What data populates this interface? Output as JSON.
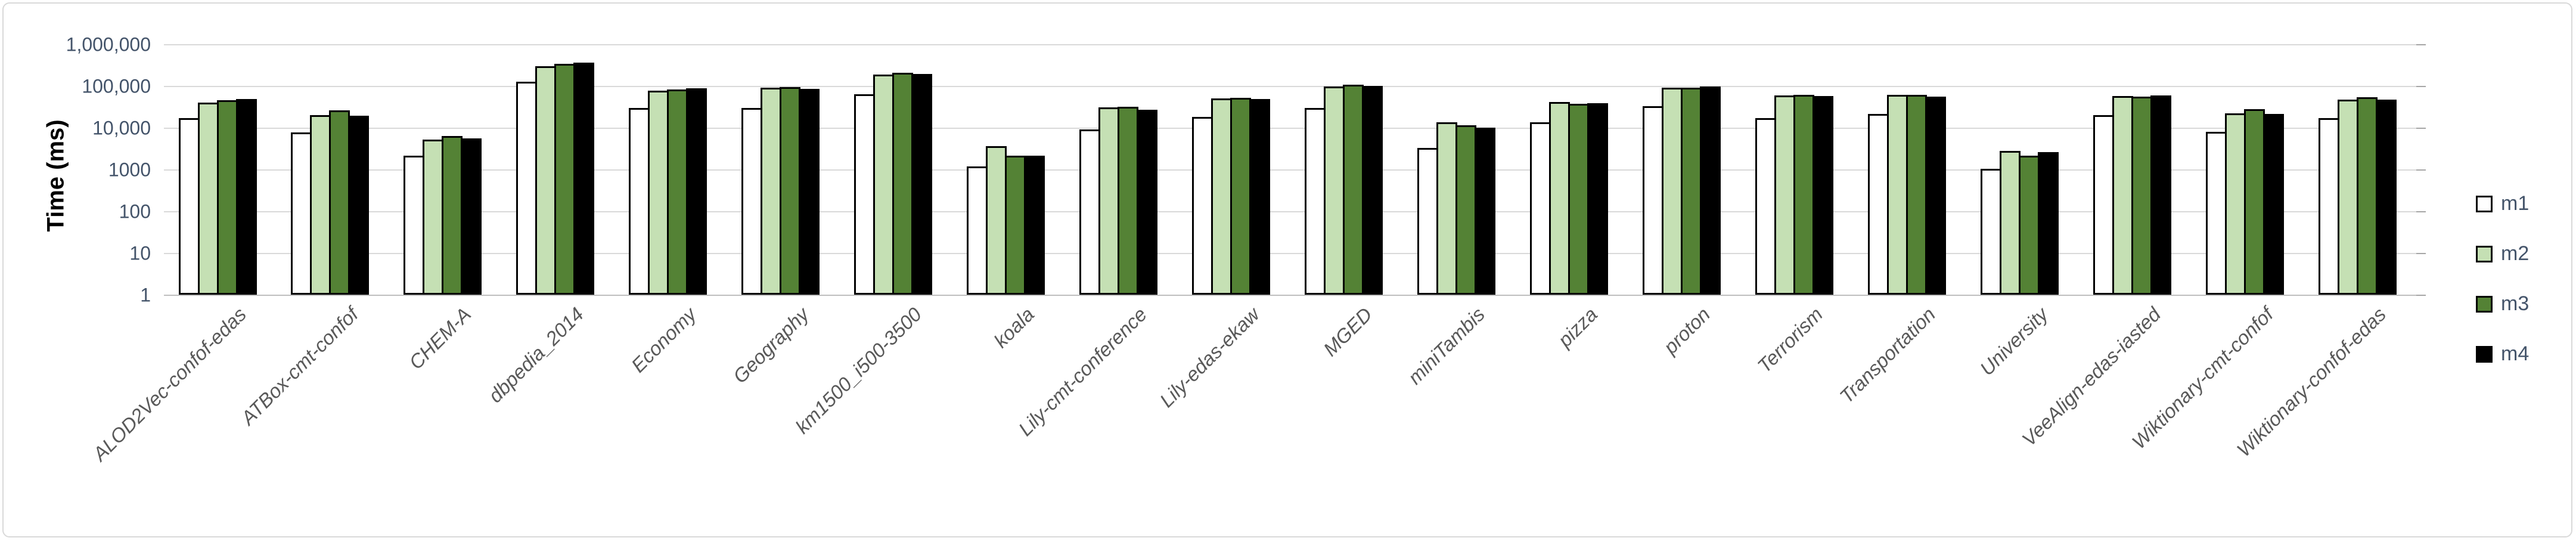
{
  "chart_data": {
    "type": "bar",
    "scale_y": "log10",
    "title": "",
    "ylabel": "Time (ms)",
    "xlabel": "",
    "ylim": [
      1,
      1000000
    ],
    "grid": true,
    "legend_position": "right",
    "y_ticks": [
      {
        "label": "1,000,000",
        "value": 1000000
      },
      {
        "label": "100,000",
        "value": 100000
      },
      {
        "label": "10,000",
        "value": 10000
      },
      {
        "label": "1000",
        "value": 1000
      },
      {
        "label": "100",
        "value": 100
      },
      {
        "label": "10",
        "value": 10
      },
      {
        "label": "1",
        "value": 1
      }
    ],
    "categories": [
      "ALOD2Vec-confof-edas",
      "ATBox-cmt-confof",
      "CHEM-A",
      "dbpedia_2014",
      "Economy",
      "Geography",
      "km1500_i500-3500",
      "koala",
      "Lily-cmt-conference",
      "Lily-edas-ekaw",
      "MGED",
      "miniTambis",
      "pizza",
      "proton",
      "Terrorism",
      "Transportation",
      "University",
      "VeeAlign-edas-iasted",
      "Wiktionary-cmt-confof",
      "Wiktionary-confof-edas"
    ],
    "series": [
      {
        "name": "m1",
        "color": "#FFFFFF",
        "values": [
          17000,
          7800,
          2100,
          125000,
          30000,
          30000,
          63000,
          1170,
          9000,
          18000,
          30000,
          3300,
          13500,
          33000,
          17000,
          21500,
          1050,
          20000,
          7900,
          17000
        ]
      },
      {
        "name": "m2",
        "color": "#C5E0B4",
        "values": [
          40000,
          20000,
          5200,
          300000,
          78000,
          90000,
          190000,
          3600,
          31000,
          50000,
          97000,
          13500,
          41000,
          92000,
          60000,
          61000,
          2800,
          58000,
          22000,
          47000
        ]
      },
      {
        "name": "m3",
        "color": "#548235",
        "values": [
          45000,
          26000,
          6300,
          340000,
          83000,
          95000,
          205000,
          2150,
          32000,
          52000,
          107000,
          11500,
          37000,
          90000,
          62000,
          61000,
          2100,
          55000,
          27500,
          54000
        ]
      },
      {
        "name": "m4",
        "color": "#000000",
        "values": [
          48000,
          19500,
          5500,
          360000,
          88000,
          85000,
          192000,
          2150,
          27000,
          49000,
          100000,
          10000,
          38000,
          96000,
          58000,
          56000,
          2600,
          59000,
          21500,
          47000
        ]
      }
    ],
    "colors": {
      "bar_border": "#000000",
      "gridline": "#D9D9D9",
      "axis_line": "#BFBFBF",
      "right_tick": "#A6A6A6",
      "y_tick_label": "#44546A",
      "category_label": "#595959",
      "legend_label": "#44546A",
      "axis_title": "#000000",
      "frame_border": "#D9D9D9"
    }
  }
}
